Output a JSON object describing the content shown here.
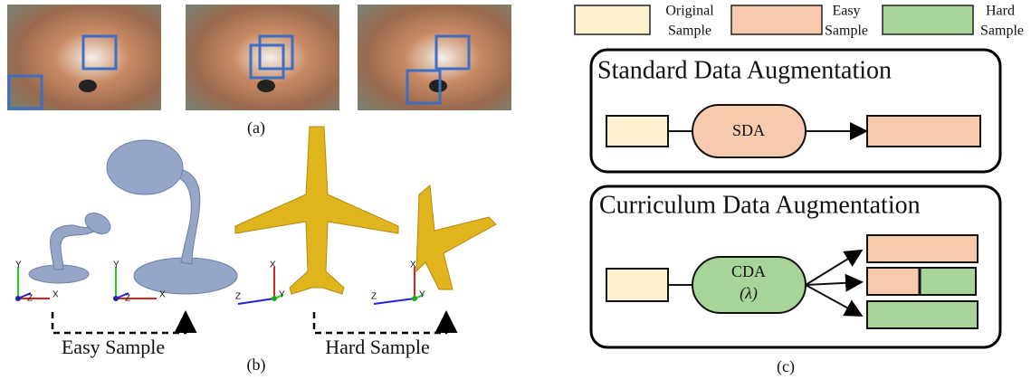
{
  "panel_a": {
    "caption": "(a)"
  },
  "panel_b": {
    "caption": "(b)",
    "easy_label": "Easy Sample",
    "hard_label": "Hard Sample",
    "axes": [
      [
        "Y",
        "Z",
        "X"
      ],
      [
        "Y",
        "Z",
        "X"
      ],
      [
        "X",
        "Z",
        "Y"
      ],
      [
        "X",
        "Z",
        "Y"
      ]
    ]
  },
  "panel_c": {
    "caption": "(c)",
    "legend": [
      [
        "Original",
        "Sample"
      ],
      [
        "Easy",
        "Sample"
      ],
      [
        "Hard",
        "Sample"
      ]
    ],
    "standard": {
      "title": "Standard Data Augmentation",
      "block": "SDA"
    },
    "curriculum": {
      "title": "Curriculum Data Augmentation",
      "block": "CDA",
      "param": "(λ)"
    }
  }
}
